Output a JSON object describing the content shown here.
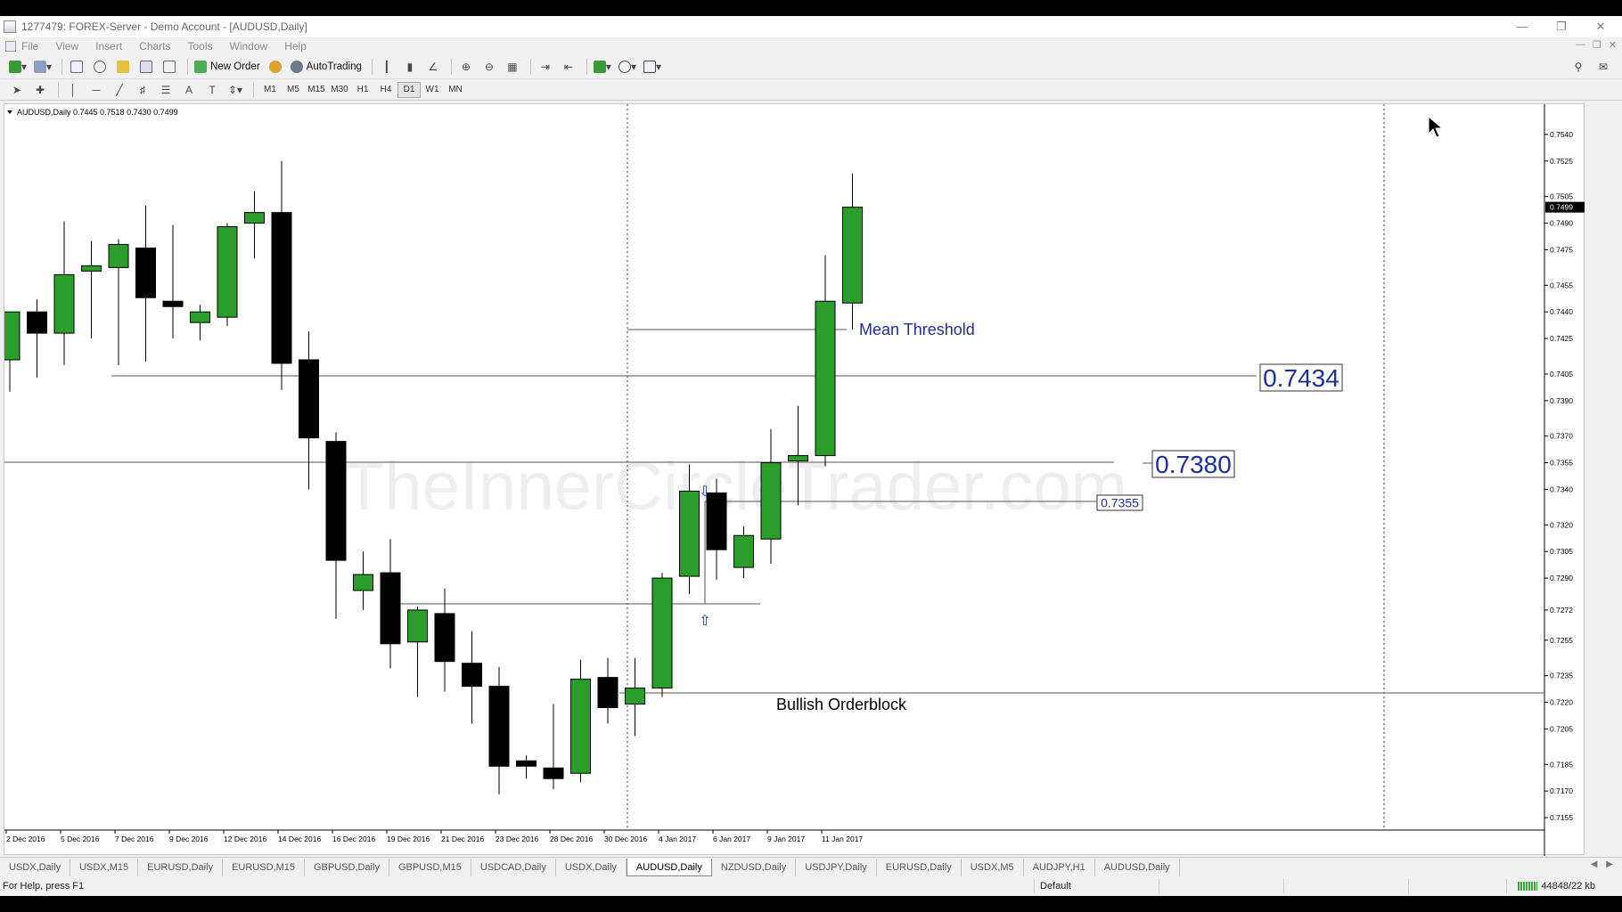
{
  "window": {
    "title": "1277479: FOREX-Server - Demo Account - [AUDUSD,Daily]"
  },
  "menu": [
    "File",
    "View",
    "Insert",
    "Charts",
    "Tools",
    "Window",
    "Help"
  ],
  "toolbar": {
    "new_order": "New Order",
    "autotrading": "AutoTrading"
  },
  "timeframes": [
    "M1",
    "M5",
    "M15",
    "M30",
    "H1",
    "H4",
    "D1",
    "W1",
    "MN"
  ],
  "active_timeframe": "D1",
  "chart": {
    "info_line": "AUDUSD,Daily  0.7445 0.7518 0.7430 0.7499",
    "watermark": "TheInnerCircleTrader.com",
    "current_price_label": "0.7499",
    "price_axis_labels": [
      "0.7540",
      "0.7525",
      "0.7505",
      "0.7490",
      "0.7475",
      "0.7455",
      "0.7440",
      "0.7425",
      "0.7405",
      "0.7390",
      "0.7370",
      "0.7355",
      "0.7340",
      "0.7320",
      "0.7305",
      "0.7290",
      "0.7272",
      "0.7255",
      "0.7235",
      "0.7220",
      "0.7205",
      "0.7185",
      "0.7170",
      "0.7155"
    ],
    "date_labels": [
      "2 Dec 2016",
      "5 Dec 2016",
      "7 Dec 2016",
      "9 Dec 2016",
      "12 Dec 2016",
      "14 Dec 2016",
      "16 Dec 2016",
      "19 Dec 2016",
      "21 Dec 2016",
      "23 Dec 2016",
      "28 Dec 2016",
      "30 Dec 2016",
      "4 Jan 2017",
      "6 Jan 2017",
      "9 Jan 2017",
      "11 Jan 2017"
    ],
    "annotations": {
      "mean_threshold": "Mean Threshold",
      "bullish_orderblock": "Bullish Orderblock",
      "level_7434": "0.7434",
      "level_7380": "0.7380",
      "level_7355": "0.7355"
    },
    "colors": {
      "bull": "#2a9d2a",
      "bear": "#000000",
      "annotation_blue": "#1c2fa0"
    }
  },
  "chart_data": {
    "type": "candlestick",
    "symbol": "AUDUSD",
    "timeframe": "Daily",
    "ylim": [
      0.7148,
      0.7548
    ],
    "candles": [
      {
        "o": 0.7413,
        "h": 0.744,
        "l": 0.7395,
        "c": 0.744
      },
      {
        "o": 0.744,
        "h": 0.7447,
        "l": 0.7403,
        "c": 0.7428
      },
      {
        "o": 0.7428,
        "h": 0.7491,
        "l": 0.741,
        "c": 0.7461
      },
      {
        "o": 0.7463,
        "h": 0.748,
        "l": 0.7425,
        "c": 0.7466
      },
      {
        "o": 0.7465,
        "h": 0.7481,
        "l": 0.741,
        "c": 0.7478
      },
      {
        "o": 0.7476,
        "h": 0.75,
        "l": 0.7412,
        "c": 0.7448
      },
      {
        "o": 0.7446,
        "h": 0.7489,
        "l": 0.7425,
        "c": 0.7443
      },
      {
        "o": 0.7434,
        "h": 0.7444,
        "l": 0.7424,
        "c": 0.744
      },
      {
        "o": 0.7437,
        "h": 0.749,
        "l": 0.7432,
        "c": 0.7488
      },
      {
        "o": 0.749,
        "h": 0.7508,
        "l": 0.747,
        "c": 0.7496
      },
      {
        "o": 0.7496,
        "h": 0.7525,
        "l": 0.7396,
        "c": 0.7411
      },
      {
        "o": 0.7413,
        "h": 0.7429,
        "l": 0.734,
        "c": 0.7369
      },
      {
        "o": 0.7367,
        "h": 0.7372,
        "l": 0.7267,
        "c": 0.73
      },
      {
        "o": 0.7283,
        "h": 0.7305,
        "l": 0.7272,
        "c": 0.7292
      },
      {
        "o": 0.7293,
        "h": 0.7312,
        "l": 0.7239,
        "c": 0.7253
      },
      {
        "o": 0.7254,
        "h": 0.7274,
        "l": 0.7223,
        "c": 0.7272
      },
      {
        "o": 0.727,
        "h": 0.7284,
        "l": 0.7226,
        "c": 0.7243
      },
      {
        "o": 0.7242,
        "h": 0.726,
        "l": 0.7208,
        "c": 0.7229
      },
      {
        "o": 0.7229,
        "h": 0.724,
        "l": 0.7168,
        "c": 0.7184
      },
      {
        "o": 0.7187,
        "h": 0.719,
        "l": 0.7177,
        "c": 0.7184
      },
      {
        "o": 0.7183,
        "h": 0.7219,
        "l": 0.7171,
        "c": 0.7177
      },
      {
        "o": 0.718,
        "h": 0.7244,
        "l": 0.7175,
        "c": 0.7233
      },
      {
        "o": 0.7234,
        "h": 0.7245,
        "l": 0.7208,
        "c": 0.7217
      },
      {
        "o": 0.7219,
        "h": 0.7245,
        "l": 0.7201,
        "c": 0.7228
      },
      {
        "o": 0.7228,
        "h": 0.7293,
        "l": 0.7223,
        "c": 0.729
      },
      {
        "o": 0.7291,
        "h": 0.7354,
        "l": 0.7281,
        "c": 0.7339
      },
      {
        "o": 0.7338,
        "h": 0.7346,
        "l": 0.7289,
        "c": 0.7306
      },
      {
        "o": 0.7296,
        "h": 0.7319,
        "l": 0.729,
        "c": 0.7314
      },
      {
        "o": 0.7312,
        "h": 0.7374,
        "l": 0.7298,
        "c": 0.7355
      },
      {
        "o": 0.7356,
        "h": 0.7387,
        "l": 0.7331,
        "c": 0.7359
      },
      {
        "o": 0.7359,
        "h": 0.7472,
        "l": 0.7353,
        "c": 0.7446
      },
      {
        "o": 0.7445,
        "h": 0.7518,
        "l": 0.743,
        "c": 0.7499
      }
    ]
  },
  "tabs": [
    "USDX,Daily",
    "USDX,M15",
    "EURUSD,Daily",
    "EURUSD,M15",
    "GBPUSD,Daily",
    "GBPUSD,M15",
    "USDCAD,Daily",
    "USDX,Daily",
    "AUDUSD,Daily",
    "NZDUSD,Daily",
    "USDJPY,Daily",
    "EURUSD,Daily",
    "USDX,M5",
    "AUDJPY,H1",
    "AUDUSD,Daily"
  ],
  "active_tab_index": 8,
  "status": {
    "help": "For Help, press F1",
    "profile": "Default",
    "traffic": "44848/22 kb"
  }
}
